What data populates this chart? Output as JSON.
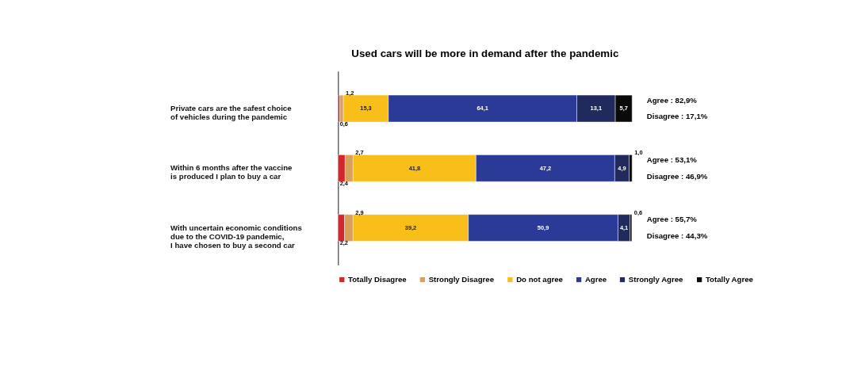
{
  "chart_data": {
    "type": "bar",
    "orientation": "horizontal",
    "stacked": true,
    "title": "Used cars will be more in demand after the pandemic",
    "categories": [
      "Private cars are the safest choice\nof vehicles during the pandemic",
      "Within 6 months after the vaccine\nis produced I plan to buy a car",
      "With uncertain economic conditions\ndue to the COVID-19 pandemic,\nI have chosen to buy a second car"
    ],
    "series": [
      {
        "name": "Totally Disagree",
        "color": "#d7262b",
        "values": [
          0.6,
          2.4,
          2.2
        ],
        "value_labels": [
          "0,6",
          "2,4",
          "2,2"
        ]
      },
      {
        "name": "Strongly Disagree",
        "color": "#d9a05a",
        "values": [
          1.2,
          2.7,
          2.9
        ],
        "value_labels": [
          "1,2",
          "2,7",
          "2,9"
        ]
      },
      {
        "name": "Do not agree",
        "color": "#f8be1a",
        "values": [
          15.3,
          41.8,
          39.2
        ],
        "value_labels": [
          "15,3",
          "41,8",
          "39,2"
        ]
      },
      {
        "name": "Agree",
        "color": "#2b3a97",
        "values": [
          64.1,
          47.2,
          50.9
        ],
        "value_labels": [
          "64,1",
          "47,2",
          "50,9"
        ]
      },
      {
        "name": "Strongly Agree",
        "color": "#202a5c",
        "values": [
          13.1,
          4.9,
          4.1
        ],
        "value_labels": [
          "13,1",
          "4,9",
          "4,1"
        ]
      },
      {
        "name": "Totally Agree",
        "color": "#0a0a0a",
        "values": [
          5.7,
          1.0,
          0.6
        ],
        "value_labels": [
          "5,7",
          "1,0",
          "0,6"
        ]
      }
    ],
    "annotations": [
      "Agree : 82,9%",
      "Disagree : 17,1%",
      "Agree : 53,1%",
      "Disagree : 46,9%",
      "Agree : 55,7%",
      "Disagree : 44,3%"
    ],
    "legend": "bottom",
    "grid": false,
    "tick_labels": "y"
  }
}
